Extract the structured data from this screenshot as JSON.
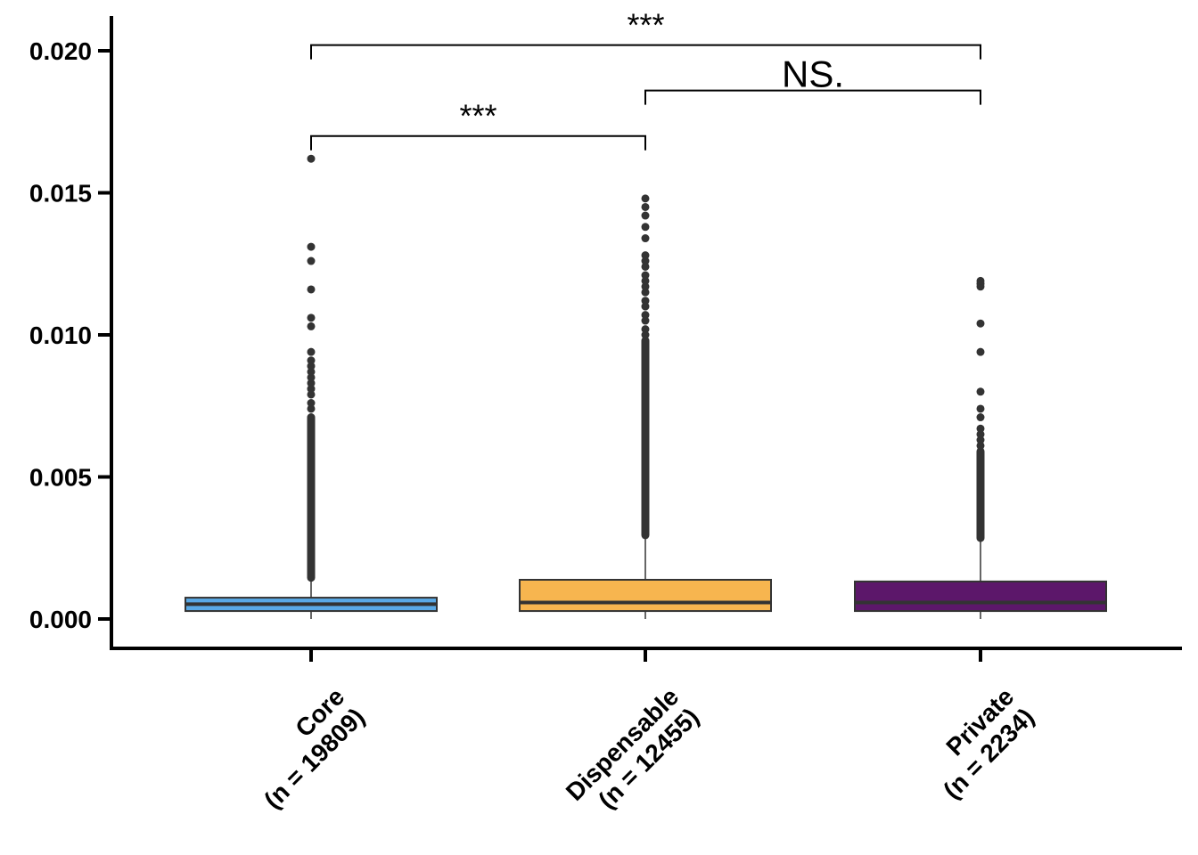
{
  "chart_data": {
    "type": "box",
    "categories": [
      {
        "name": "Core",
        "n_label": "(n = 19809)",
        "color": "#5aa9e6"
      },
      {
        "name": "Dispensable",
        "n_label": "(n = 12455)",
        "color": "#f7b54f"
      },
      {
        "name": "Private",
        "n_label": "(n = 2234)",
        "color": "#5c176a"
      }
    ],
    "ylim": [
      -0.001,
      0.0213
    ],
    "yticks": [
      0.0,
      0.005,
      0.01,
      0.015,
      0.02
    ],
    "ytick_labels": [
      "0.000",
      "0.005",
      "0.010",
      "0.015",
      "0.020"
    ],
    "boxes": [
      {
        "q1": 0.00028,
        "median": 0.00052,
        "q3": 0.00075,
        "whisker_low": 0.0,
        "whisker_high": 0.00145,
        "outliers_dense": [
          0.00145,
          0.0071
        ],
        "outliers": [
          0.0074,
          0.0076,
          0.0079,
          0.0081,
          0.0083,
          0.0085,
          0.0087,
          0.0089,
          0.0091,
          0.0094,
          0.0103,
          0.0106,
          0.0116,
          0.0126,
          0.0131,
          0.0162
        ]
      },
      {
        "q1": 0.00028,
        "median": 0.00058,
        "q3": 0.00138,
        "whisker_low": 0.0,
        "whisker_high": 0.00295,
        "outliers_dense": [
          0.00295,
          0.0098
        ],
        "outliers": [
          0.01,
          0.0102,
          0.0105,
          0.0107,
          0.011,
          0.0112,
          0.0115,
          0.0117,
          0.0119,
          0.0121,
          0.0124,
          0.0126,
          0.0128,
          0.0134,
          0.0138,
          0.0142,
          0.0145,
          0.0148
        ]
      },
      {
        "q1": 0.00028,
        "median": 0.00058,
        "q3": 0.00132,
        "whisker_low": 0.0,
        "whisker_high": 0.00285,
        "outliers_dense": [
          0.00285,
          0.0059
        ],
        "outliers": [
          0.0061,
          0.0063,
          0.0065,
          0.0067,
          0.0071,
          0.0074,
          0.008,
          0.0094,
          0.0104,
          0.0117,
          0.0118,
          0.0119
        ]
      }
    ],
    "significance": [
      {
        "from": 0,
        "to": 1,
        "y": 0.017,
        "label": "***"
      },
      {
        "from": 1,
        "to": 2,
        "y": 0.0186,
        "label": "NS."
      },
      {
        "from": 0,
        "to": 2,
        "y": 0.0202,
        "label": "***"
      }
    ],
    "styles": {
      "axis_color": "#000000",
      "box_line_color": "#333333",
      "outlier_color": "#333333"
    }
  }
}
